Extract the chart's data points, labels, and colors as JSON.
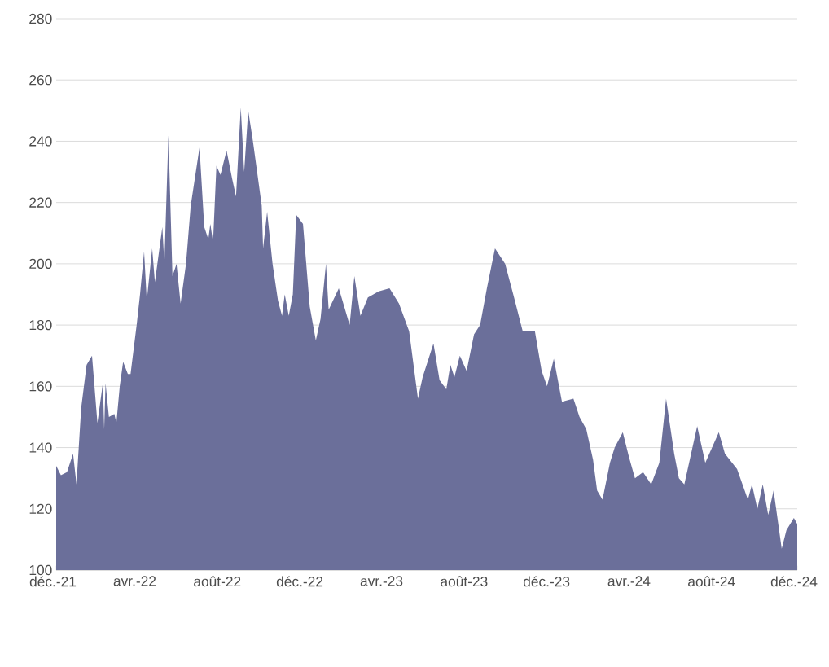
{
  "chart_data": {
    "type": "area",
    "color": "#6b6f9a",
    "grid": "y",
    "ylim": [
      100,
      280
    ],
    "yticks": [
      100,
      120,
      140,
      160,
      180,
      200,
      220,
      240,
      260,
      280
    ],
    "xlim": [
      "2021-12-01",
      "2024-12-01"
    ],
    "xticks": [
      {
        "value": "2021-12-01",
        "label": "déc.-21"
      },
      {
        "value": "2022-04-01",
        "label": "avr.-22"
      },
      {
        "value": "2022-08-01",
        "label": "août-22"
      },
      {
        "value": "2022-12-01",
        "label": "déc.-22"
      },
      {
        "value": "2023-04-01",
        "label": "avr.-23"
      },
      {
        "value": "2023-08-01",
        "label": "août-23"
      },
      {
        "value": "2023-12-01",
        "label": "déc.-23"
      },
      {
        "value": "2024-04-01",
        "label": "avr.-24"
      },
      {
        "value": "2024-08-01",
        "label": "août-24"
      },
      {
        "value": "2024-12-01",
        "label": "déc.-24"
      }
    ],
    "x": [
      "2021-12-01",
      "2021-12-08",
      "2021-12-17",
      "2021-12-26",
      "2021-12-31",
      "2022-01-07",
      "2022-01-15",
      "2022-01-23",
      "2022-01-31",
      "2022-02-08",
      "2022-02-10",
      "2022-02-12",
      "2022-02-17",
      "2022-02-25",
      "2022-02-28",
      "2022-03-05",
      "2022-03-10",
      "2022-03-17",
      "2022-03-21",
      "2022-03-30",
      "2022-04-04",
      "2022-04-10",
      "2022-04-14",
      "2022-04-22",
      "2022-04-26",
      "2022-05-07",
      "2022-05-10",
      "2022-05-16",
      "2022-05-22",
      "2022-05-28",
      "2022-06-03",
      "2022-06-11",
      "2022-06-18",
      "2022-07-01",
      "2022-07-08",
      "2022-07-14",
      "2022-07-17",
      "2022-07-21",
      "2022-07-26",
      "2022-08-01",
      "2022-08-10",
      "2022-08-18",
      "2022-08-24",
      "2022-08-31",
      "2022-09-05",
      "2022-09-11",
      "2022-09-18",
      "2022-10-01",
      "2022-10-03",
      "2022-10-09",
      "2022-10-17",
      "2022-10-25",
      "2022-10-31",
      "2022-11-04",
      "2022-11-10",
      "2022-11-16",
      "2022-11-21",
      "2022-12-01",
      "2022-12-11",
      "2022-12-20",
      "2022-12-27",
      "2023-01-04",
      "2023-01-08",
      "2023-01-23",
      "2023-02-08",
      "2023-02-15",
      "2023-02-24",
      "2023-03-07",
      "2023-03-23",
      "2023-04-08",
      "2023-04-22",
      "2023-05-07",
      "2023-05-20",
      "2023-05-27",
      "2023-06-12",
      "2023-06-21",
      "2023-07-01",
      "2023-07-07",
      "2023-07-13",
      "2023-07-21",
      "2023-07-31",
      "2023-08-11",
      "2023-08-20",
      "2023-08-30",
      "2023-09-11",
      "2023-09-26",
      "2023-10-08",
      "2023-10-22",
      "2023-11-09",
      "2023-11-19",
      "2023-11-27",
      "2023-12-07",
      "2023-12-19",
      "2024-01-05",
      "2024-01-14",
      "2024-01-24",
      "2024-02-03",
      "2024-02-09",
      "2024-02-17",
      "2024-02-28",
      "2024-03-06",
      "2024-03-18",
      "2024-03-27",
      "2024-04-05",
      "2024-04-17",
      "2024-04-29",
      "2024-05-11",
      "2024-05-21",
      "2024-06-02",
      "2024-06-09",
      "2024-06-17",
      "2024-07-06",
      "2024-07-18",
      "2024-08-07",
      "2024-08-16",
      "2024-09-03",
      "2024-09-19",
      "2024-09-25",
      "2024-10-03",
      "2024-10-11",
      "2024-10-19",
      "2024-10-27",
      "2024-11-08",
      "2024-11-15",
      "2024-11-26",
      "2024-12-01"
    ],
    "values": [
      134,
      131,
      132,
      138,
      128,
      153,
      167,
      170,
      148,
      161,
      146,
      161,
      150,
      151,
      148,
      160,
      168,
      164,
      164,
      180,
      190,
      204,
      188,
      205,
      194,
      212,
      200,
      242,
      196,
      200,
      187,
      200,
      219,
      238,
      212,
      208,
      213,
      207,
      232,
      229,
      237,
      228,
      222,
      251,
      230,
      250,
      240,
      219,
      205,
      217,
      200,
      188,
      183,
      190,
      183,
      190,
      216,
      213,
      186,
      175,
      182,
      200,
      185,
      192,
      180,
      196,
      183,
      189,
      191,
      192,
      187,
      178,
      156,
      163,
      174,
      162,
      159,
      167,
      163,
      170,
      165,
      177,
      180,
      192,
      205,
      200,
      190,
      178,
      178,
      165,
      160,
      169,
      155,
      156,
      150,
      146,
      136,
      126,
      123,
      135,
      140,
      145,
      137,
      130,
      132,
      128,
      135,
      156,
      138,
      130,
      128,
      147,
      135,
      145,
      138,
      133,
      123,
      128,
      120,
      128,
      118,
      126,
      107,
      113,
      117,
      115
    ]
  }
}
